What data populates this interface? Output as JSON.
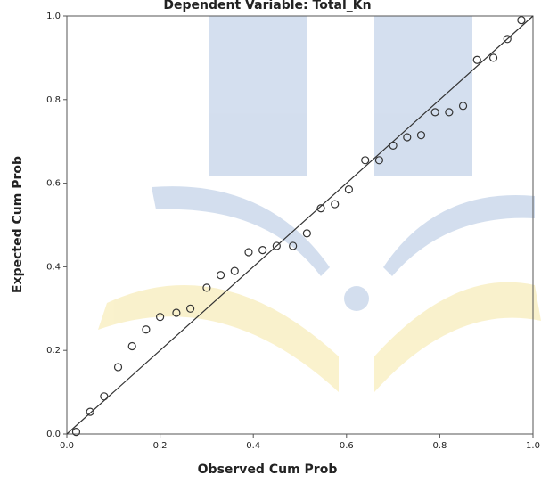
{
  "chart_data": {
    "type": "scatter",
    "title": "Dependent Variable: Total_Kn",
    "x_label": "Observed Cum Prob",
    "y_label": "Expected Cum Prob",
    "color": "#333333",
    "xlim": [
      0,
      1
    ],
    "ylim": [
      0,
      1
    ],
    "xticks": [
      {
        "value": 0,
        "label": "0.0"
      },
      0.2,
      0.4,
      0.6,
      0.8,
      {
        "value": 1,
        "label": "1.0"
      }
    ],
    "yticks": [
      {
        "value": 0,
        "label": "0.0"
      },
      0.2,
      0.4,
      0.6,
      0.8,
      {
        "value": 1,
        "label": "1.0"
      }
    ],
    "x": [
      0.02,
      0.05,
      0.08,
      0.11,
      0.14,
      0.17,
      0.2,
      0.235,
      0.265,
      0.3,
      0.33,
      0.36,
      0.39,
      0.42,
      0.45,
      0.485,
      0.515,
      0.545,
      0.575,
      0.605,
      0.64,
      0.67,
      0.7,
      0.73,
      0.76,
      0.79,
      0.82,
      0.85,
      0.88,
      0.915,
      0.945,
      0.975
    ],
    "values": [
      0.005,
      0.053,
      0.09,
      0.16,
      0.21,
      0.25,
      0.28,
      0.29,
      0.3,
      0.35,
      0.38,
      0.39,
      0.435,
      0.44,
      0.45,
      0.45,
      0.48,
      0.54,
      0.55,
      0.585,
      0.655,
      0.655,
      0.69,
      0.71,
      0.715,
      0.77,
      0.77,
      0.785,
      0.895,
      0.9,
      0.945,
      0.99
    ]
  }
}
